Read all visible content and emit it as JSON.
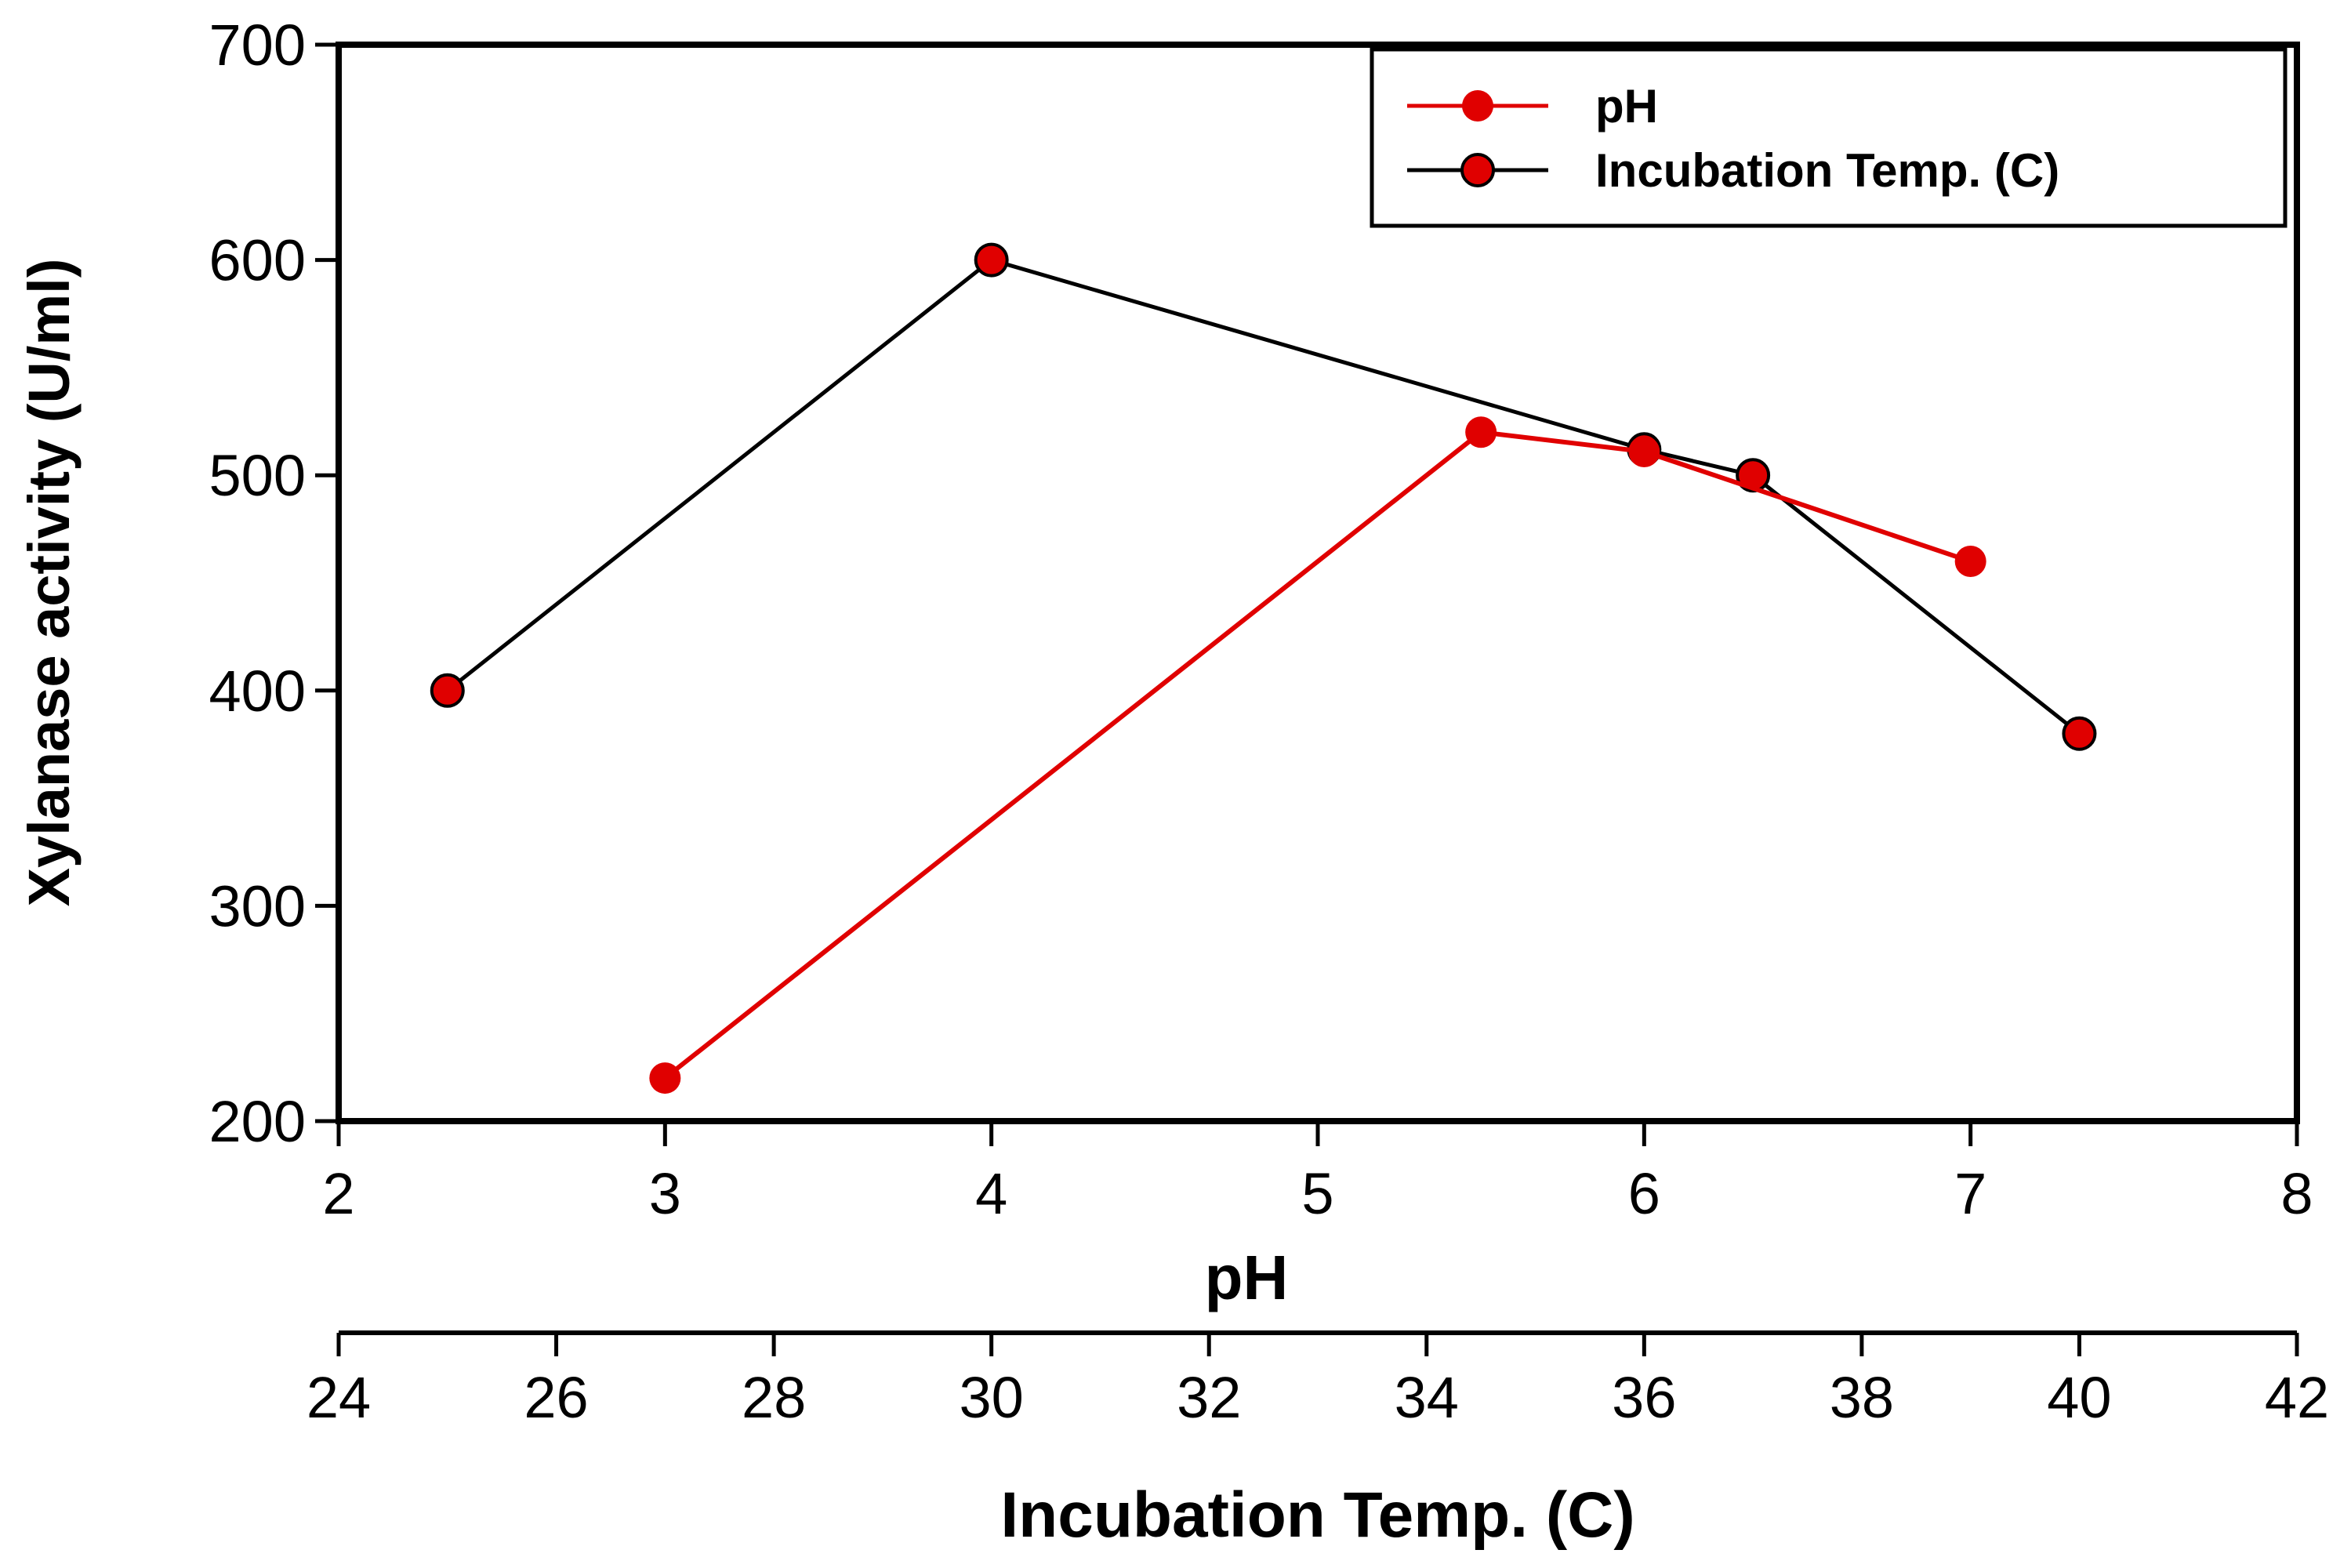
{
  "chart_data": {
    "type": "line",
    "ylabel": "Xylanase activity (U/ml)",
    "ylim": [
      200,
      700
    ],
    "yticks": [
      "200",
      "300",
      "400",
      "500",
      "600",
      "700"
    ],
    "xaxis_primary": {
      "label": "pH",
      "lim": [
        2,
        8
      ],
      "ticks": [
        "2",
        "3",
        "4",
        "5",
        "6",
        "7",
        "8"
      ]
    },
    "xaxis_secondary": {
      "label": "Incubation Temp. (C)",
      "lim": [
        24,
        42
      ],
      "ticks": [
        "24",
        "26",
        "28",
        "30",
        "32",
        "34",
        "36",
        "38",
        "40",
        "42"
      ]
    },
    "legend_position": "top-right",
    "series": [
      {
        "name": "pH",
        "axis": "primary",
        "color": "#e00000",
        "x": [
          3,
          5.5,
          6,
          7
        ],
        "y": [
          220,
          520,
          511,
          460
        ]
      },
      {
        "name": "Incubation Temp. (C)",
        "axis": "secondary",
        "color": "#000000",
        "marker_color": "#e00000",
        "x": [
          25,
          30,
          36,
          37,
          40
        ],
        "y": [
          400,
          600,
          512,
          500,
          380
        ]
      }
    ]
  }
}
